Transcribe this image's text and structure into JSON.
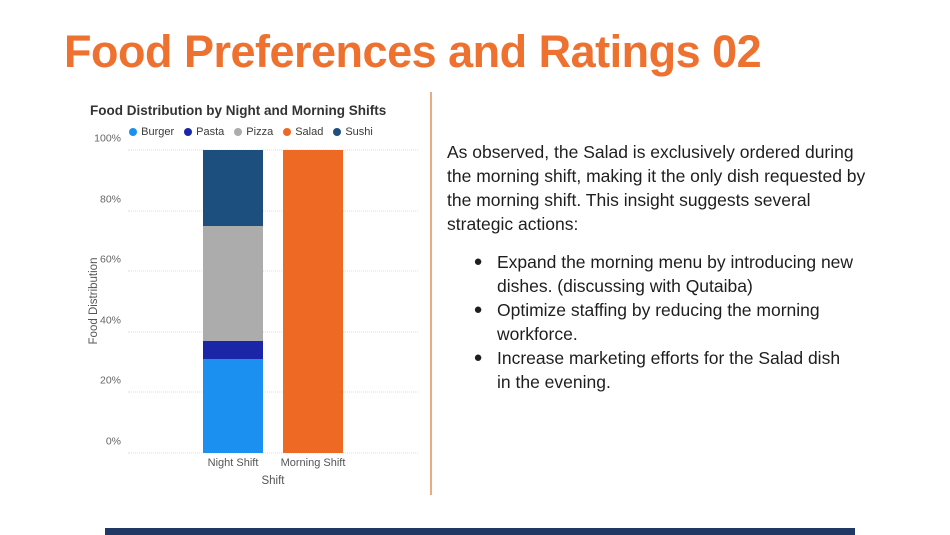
{
  "slide": {
    "title": "Food Preferences and Ratings 02",
    "accent_color": "#EE7130",
    "divider_color": "#EBAB80",
    "footer_bar_color": "#1F3864"
  },
  "chart_data": {
    "type": "bar",
    "stacked": true,
    "percent": true,
    "title": "Food Distribution by Night and Morning Shifts",
    "categories": [
      "Night Shift",
      "Morning Shift"
    ],
    "series": [
      {
        "name": "Burger",
        "color": "#1B90F0",
        "values": [
          31,
          0
        ]
      },
      {
        "name": "Pasta",
        "color": "#1B25A8",
        "values": [
          6,
          0
        ]
      },
      {
        "name": "Pizza",
        "color": "#ACACAC",
        "values": [
          38,
          0
        ]
      },
      {
        "name": "Salad",
        "color": "#EE6A24",
        "values": [
          0,
          100
        ]
      },
      {
        "name": "Sushi",
        "color": "#1C4E7E",
        "values": [
          25,
          0
        ]
      }
    ],
    "xlabel": "Shift",
    "ylabel": "Food Distribution",
    "ylim": [
      0,
      100
    ],
    "yticks": [
      "0%",
      "20%",
      "40%",
      "60%",
      "80%",
      "100%"
    ],
    "grid": true,
    "legend_position": "top"
  },
  "insight": {
    "paragraph": "As observed, the Salad is exclusively ordered during the morning shift, making it the only dish requested by the morning shift. This insight suggests several strategic actions:",
    "bullets": [
      "Expand the morning menu by introducing new dishes. (discussing with Qutaiba)",
      "Optimize staffing by reducing the morning workforce.",
      "Increase marketing efforts for the Salad dish in the evening."
    ],
    "bullet_glyph": "●"
  }
}
